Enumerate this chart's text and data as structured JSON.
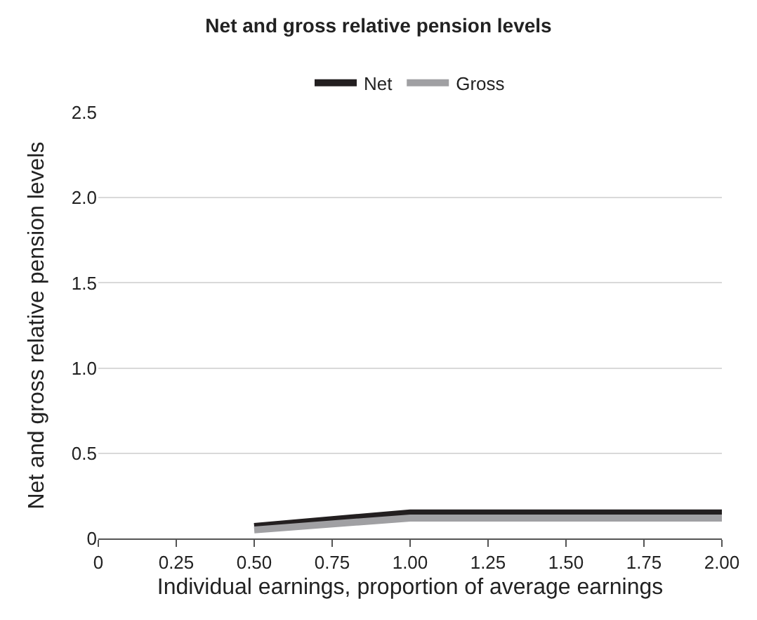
{
  "chart_data": {
    "type": "line",
    "title": "Net and gross relative pension levels",
    "xlabel": "Individual earnings, proportion of average earnings",
    "ylabel": "Net and gross relative pension levels",
    "x": [
      0.5,
      1.0,
      1.5,
      2.0
    ],
    "series": [
      {
        "name": "Net",
        "color": "#231f20",
        "values": [
          0.07,
          0.15,
          0.15,
          0.15
        ]
      },
      {
        "name": "Gross",
        "color": "#a0a0a3",
        "values": [
          0.05,
          0.12,
          0.12,
          0.12
        ]
      }
    ],
    "xlim": [
      0,
      2.0
    ],
    "xticks": [
      0,
      {
        "value": 0.25,
        "label": "0.25"
      },
      {
        "value": 0.5,
        "label": "0.50"
      },
      {
        "value": 0.75,
        "label": "0.75"
      },
      {
        "value": 1.0,
        "label": "1.00"
      },
      {
        "value": 1.25,
        "label": "1.25"
      },
      {
        "value": 1.5,
        "label": "1.50"
      },
      {
        "value": 1.75,
        "label": "1.75"
      },
      {
        "value": 2.0,
        "label": "2.00"
      }
    ],
    "ylim": [
      0,
      2.5
    ],
    "yticks": [
      0,
      0.5,
      {
        "value": 1.0,
        "label": "1.0"
      },
      1.5,
      {
        "value": 2.0,
        "label": "2.0"
      },
      2.5
    ],
    "grid": "y",
    "legend": "top",
    "marker": "none",
    "line_style": "solid"
  }
}
